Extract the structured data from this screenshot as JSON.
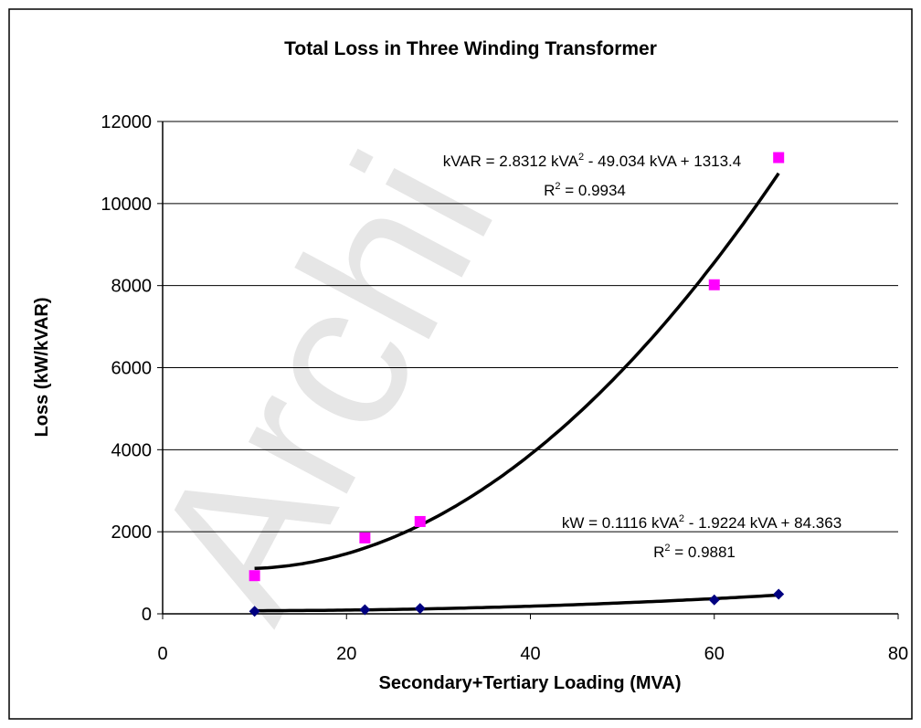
{
  "chart_data": {
    "type": "scatter",
    "title": "Total Loss in Three Winding Transformer",
    "xlabel": "Secondary+Tertiary Loading (MVA)",
    "ylabel": "Loss (kW/kVAR)",
    "watermark": "Archi",
    "xlim": [
      0,
      80
    ],
    "xticks": [
      0,
      20,
      40,
      60,
      80
    ],
    "ylim": [
      0,
      12000
    ],
    "yticks": [
      0,
      2000,
      4000,
      6000,
      8000,
      10000,
      12000
    ],
    "grid": true,
    "series": [
      {
        "color": "#000080",
        "marker": "diamond",
        "x": [
          10,
          22,
          28,
          60,
          67
        ],
        "values": [
          60,
          100,
          130,
          340,
          480
        ],
        "trendline": {
          "coefficients": [
            0.1116,
            -1.9224,
            84.363
          ],
          "equation": [
            "kW = 0.1116 kVA",
            "2",
            " - 1.9224 kVA + 84.363"
          ],
          "r2": [
            "R",
            "2",
            " = 0.9881"
          ]
        }
      },
      {
        "color": "#ff00ff",
        "marker": "square",
        "x": [
          10,
          22,
          28,
          60,
          67
        ],
        "values": [
          930,
          1850,
          2250,
          8020,
          11120
        ],
        "trendline": {
          "coefficients": [
            2.8312,
            -49.034,
            1313.4
          ],
          "equation": [
            "kVAR = 2.8312 kVA",
            "2",
            " - 49.034 kVA + 1313.4"
          ],
          "r2": [
            "R",
            "2",
            " = 0.9934"
          ]
        }
      }
    ]
  }
}
